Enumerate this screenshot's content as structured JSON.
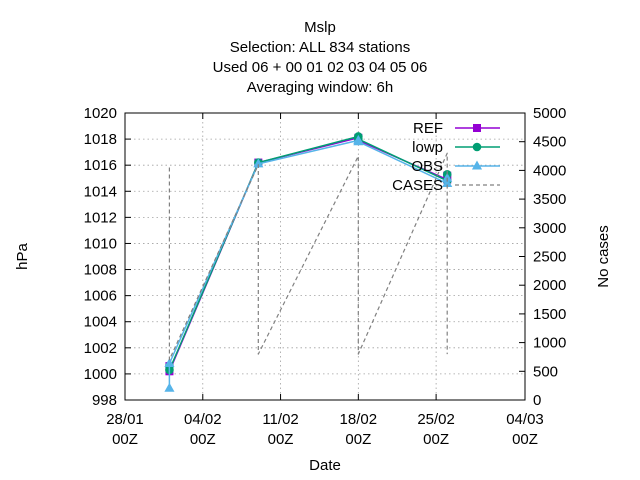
{
  "chart_data": {
    "type": "line",
    "title_lines": [
      "Mslp",
      "Selection: ALL     834 stations",
      "Used  06  + 00 01 02 03 04 05 06",
      "Averaging window:  6h"
    ],
    "xlabel": "Date",
    "ylabel": "hPa",
    "y2label": "No cases",
    "xlim": [
      "2024-01-28T00:00",
      "2024-03-04T00:00"
    ],
    "ylim": [
      998,
      1020
    ],
    "y2lim": [
      0,
      5000
    ],
    "x_ticks": [
      {
        "date": "2024-01-28T00:00",
        "line1": "28/01",
        "line2": "00Z"
      },
      {
        "date": "2024-02-04T00:00",
        "line1": "04/02",
        "line2": "00Z"
      },
      {
        "date": "2024-02-11T00:00",
        "line1": "11/02",
        "line2": "00Z"
      },
      {
        "date": "2024-02-18T00:00",
        "line1": "18/02",
        "line2": "00Z"
      },
      {
        "date": "2024-02-25T00:00",
        "line1": "25/02",
        "line2": "00Z"
      },
      {
        "date": "2024-03-04T00:00",
        "line1": "04/03",
        "line2": "00Z"
      }
    ],
    "y_ticks": [
      "998",
      "1000",
      "1002",
      "1004",
      "1006",
      "1008",
      "1010",
      "1012",
      "1014",
      "1016",
      "1018",
      "1020"
    ],
    "y2_ticks": [
      "0",
      "500",
      "1000",
      "1500",
      "2000",
      "2500",
      "3000",
      "3500",
      "4000",
      "4500",
      "5000"
    ],
    "grid": true,
    "legend_position": "top-right",
    "series": [
      {
        "name": "REF",
        "color": "#9400d3",
        "style": "solid",
        "marker": "filled-square",
        "axis": "left",
        "points": [
          {
            "x": "2024-02-01T00:00",
            "y": 1000.6
          },
          {
            "x": "2024-02-01T00:00",
            "y": 1000.2
          },
          {
            "x": "2024-02-09T00:00",
            "y": 1016.2
          },
          {
            "x": "2024-02-18T00:00",
            "y": 1018.1
          },
          {
            "x": "2024-02-18T00:00",
            "y": 1017.9
          },
          {
            "x": "2024-02-26T00:00",
            "y": 1014.9
          },
          {
            "x": "2024-02-26T00:00",
            "y": 1015.2
          }
        ]
      },
      {
        "name": "lowp",
        "color": "#009e73",
        "style": "solid",
        "marker": "filled-circle",
        "axis": "left",
        "points": [
          {
            "x": "2024-02-01T00:00",
            "y": 1000.6
          },
          {
            "x": "2024-02-01T00:00",
            "y": 1000.3
          },
          {
            "x": "2024-02-09T00:00",
            "y": 1016.2
          },
          {
            "x": "2024-02-18T00:00",
            "y": 1018.2
          },
          {
            "x": "2024-02-18T00:00",
            "y": 1018.0
          },
          {
            "x": "2024-02-26T00:00",
            "y": 1014.8
          },
          {
            "x": "2024-02-26T00:00",
            "y": 1015.3
          }
        ]
      },
      {
        "name": "OBS",
        "color": "#56b4e9",
        "style": "solid",
        "marker": "filled-triangle",
        "axis": "left",
        "points": [
          {
            "x": "2024-02-01T00:00",
            "y": 998.9
          },
          {
            "x": "2024-02-01T00:00",
            "y": 1000.8
          },
          {
            "x": "2024-02-09T00:00",
            "y": 1016.1
          },
          {
            "x": "2024-02-18T00:00",
            "y": 1017.9
          },
          {
            "x": "2024-02-18T00:00",
            "y": 1017.8
          },
          {
            "x": "2024-02-26T00:00",
            "y": 1014.6
          },
          {
            "x": "2024-02-26T00:00",
            "y": 1015.0
          }
        ]
      },
      {
        "name": "CASES",
        "color": "#808080",
        "style": "dashed",
        "marker": "none",
        "axis": "right",
        "points": [
          {
            "x": "2024-02-01T00:00",
            "y": 4050
          },
          {
            "x": "2024-02-01T00:00",
            "y": 700
          },
          {
            "x": "2024-02-09T00:00",
            "y": 4100
          },
          {
            "x": "2024-02-09T00:00",
            "y": 800
          },
          {
            "x": "2024-02-18T00:00",
            "y": 4250
          },
          {
            "x": "2024-02-18T00:00",
            "y": 800
          },
          {
            "x": "2024-02-26T00:00",
            "y": 4300
          },
          {
            "x": "2024-02-26T00:00",
            "y": 800
          }
        ]
      }
    ]
  }
}
